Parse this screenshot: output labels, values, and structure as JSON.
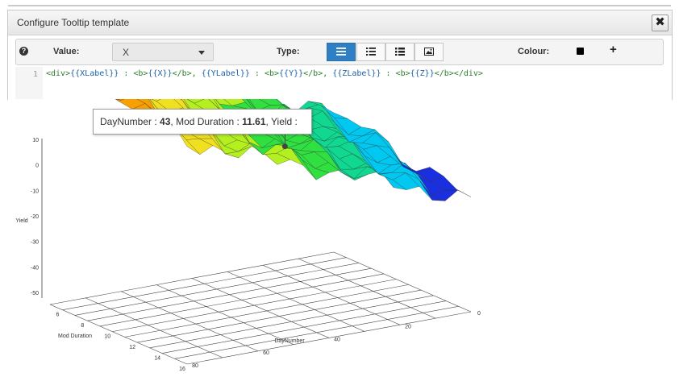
{
  "dialog": {
    "title": "Configure Tooltip template",
    "close_label": "✖"
  },
  "toolbar": {
    "help_label": "?",
    "value_label": "Value:",
    "value_selected": "X",
    "type_label": "Type:",
    "type_buttons": [
      {
        "icon": "paragraph-icon",
        "active": true
      },
      {
        "icon": "bullet-list-icon",
        "active": false
      },
      {
        "icon": "numbered-list-icon",
        "active": false
      },
      {
        "icon": "image-icon",
        "active": false
      }
    ],
    "colour_label": "Colour:",
    "colour_value": "#000000",
    "add_label": "+"
  },
  "editor": {
    "line_number": "1",
    "code": [
      {
        "t": "<div>",
        "v": false
      },
      {
        "t": "{{XLabel}}",
        "v": true
      },
      {
        "t": " : <b>",
        "v": false
      },
      {
        "t": "{{X}}",
        "v": true
      },
      {
        "t": "</b>, ",
        "v": false
      },
      {
        "t": "{{YLabel}}",
        "v": true
      },
      {
        "t": " : <b>",
        "v": false
      },
      {
        "t": "{{Y}}",
        "v": true
      },
      {
        "t": "</b>, ",
        "v": false
      },
      {
        "t": "{{ZLabel}}",
        "v": true
      },
      {
        "t": " : <b>",
        "v": false
      },
      {
        "t": "{{Z}}",
        "v": true
      },
      {
        "t": "</b></div>",
        "v": false
      }
    ]
  },
  "tooltip": {
    "x_label": "DayNumber",
    "x_value": "43",
    "y_label": "Mod Duration",
    "y_value": "11.61",
    "z_label": "Yield",
    "separator": " : ",
    "comma": ", "
  },
  "chart_data": {
    "type": "surface-3d",
    "axes": {
      "yield": {
        "label": "Yield",
        "ticks": [
          "10",
          "0",
          "-10",
          "-20",
          "-30",
          "-40",
          "-50"
        ],
        "range": [
          -55,
          12
        ]
      },
      "mod_duration": {
        "label": "Mod Duration",
        "ticks": [
          "6",
          "8",
          "10",
          "12",
          "14",
          "16"
        ],
        "range": [
          5,
          16
        ]
      },
      "day_number": {
        "label": "DayNumber",
        "ticks": [
          "0",
          "20",
          "40",
          "60",
          "80"
        ],
        "range": [
          0,
          80
        ]
      }
    },
    "colorscale": [
      "#1a2fe0",
      "#00c8f0",
      "#10d890",
      "#30e040",
      "#b4f020",
      "#f0e020",
      "#f8a000",
      "#f05a00"
    ],
    "grid": true,
    "highlight": {
      "day_number": 43,
      "mod_duration": 11.61
    }
  }
}
